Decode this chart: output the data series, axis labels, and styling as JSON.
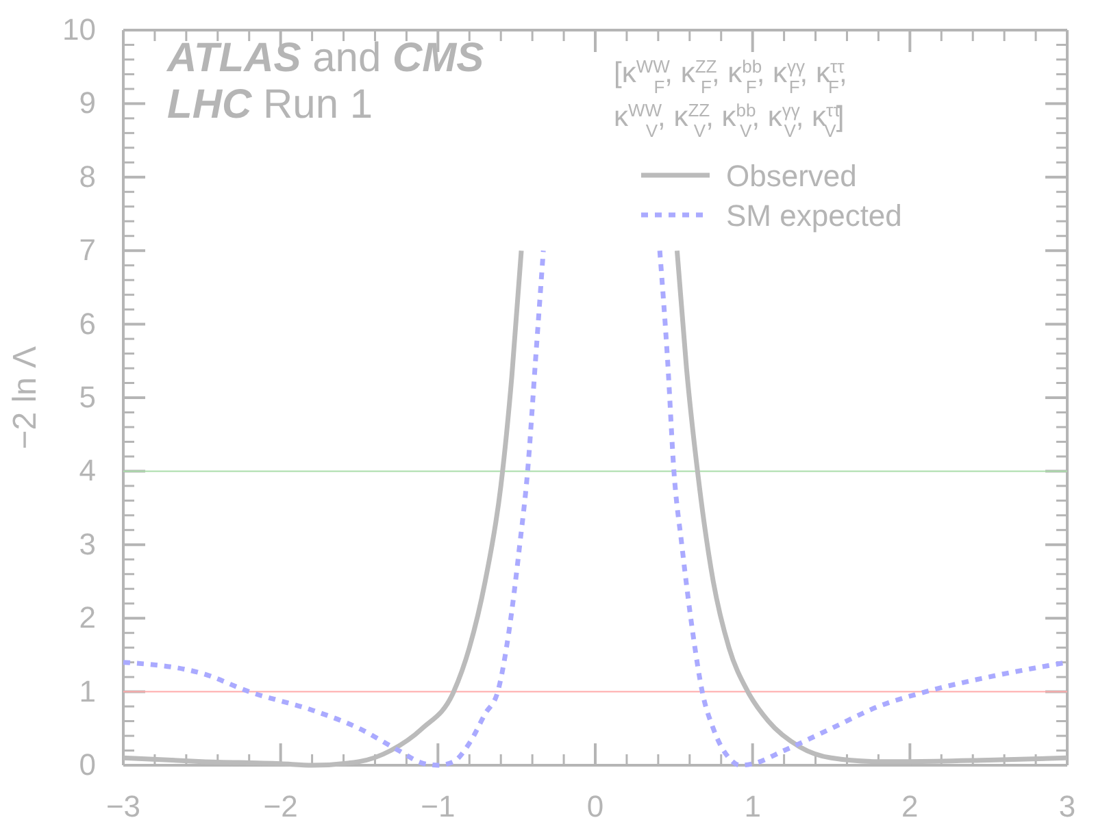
{
  "chart_data": {
    "type": "line",
    "ylabel": "−2 ln Λ",
    "xlim": [
      -3,
      3
    ],
    "ylim": [
      0,
      10
    ],
    "xticks": [
      -3,
      -2,
      -1,
      0,
      1,
      2,
      3
    ],
    "yticks": [
      0,
      1,
      2,
      3,
      4,
      5,
      6,
      7,
      8,
      9,
      10
    ],
    "grid": false,
    "legend": "top right",
    "marker": "none",
    "annotations": [
      "ATLAS and CMS",
      "LHC Run 1",
      "[κ$^{WW}$$_{F}$, κ$^{ZZ}$$_{F}$, κ$^{bb}$$_{F}$, κ$^{γγ}$$_{F}$, κ$^{ττ}$$_{F}$,",
      "κ$^{WW}$$_{V}$, κ$^{ZZ}$$_{V}$, κ$^{bb}$$_{V}$, κ$^{γγ}$$_{V}$, κ$^{ττ}$$_{V}$]"
    ],
    "ref_lines": [
      {
        "axis": "y",
        "value": 1,
        "color": "#ffaaaa"
      },
      {
        "axis": "y",
        "value": 4,
        "color": "#aaddaa"
      }
    ],
    "series": [
      {
        "name": "Observed",
        "color": "#bbbbbb",
        "line_style": "solid",
        "x": [
          -3,
          -2.5,
          -2,
          -1.8,
          -1.5,
          -1.3,
          -1.1,
          -0.9,
          -0.8,
          -0.7,
          -0.6,
          -0.53,
          -0.47,
          0,
          0.52,
          0.58,
          0.65,
          0.75,
          0.85,
          0.97,
          1.1,
          1.3,
          1.5,
          1.8,
          2,
          2.5,
          3
        ],
        "values": [
          0.1,
          0.05,
          0.02,
          0,
          0.05,
          0.2,
          0.5,
          1,
          1.6,
          2.5,
          3.8,
          5.3,
          7,
          null,
          7,
          5.4,
          4,
          2.5,
          1.6,
          1,
          0.6,
          0.25,
          0.1,
          0.05,
          0.05,
          0.07,
          0.1
        ]
      },
      {
        "name": "SM expected",
        "color": "#aaaaff",
        "line_style": "dotted",
        "x": [
          -3,
          -2.5,
          -2.2,
          -1.8,
          -1.5,
          -1.25,
          -1.1,
          -1,
          -0.9,
          -0.8,
          -0.7,
          -0.62,
          -0.55,
          -0.48,
          -0.43,
          -0.38,
          -0.33,
          0,
          0.41,
          0.46,
          0.5,
          0.55,
          0.62,
          0.68,
          0.75,
          0.85,
          0.92,
          1,
          1.2,
          1.5,
          1.8,
          2.1,
          2.5,
          3
        ],
        "values": [
          1.4,
          1.25,
          1,
          0.75,
          0.5,
          0.2,
          0.03,
          0,
          0.05,
          0.3,
          0.7,
          1,
          1.8,
          3,
          4,
          5.5,
          7,
          null,
          7,
          5.5,
          4,
          3,
          1.8,
          1,
          0.5,
          0.1,
          0,
          0.02,
          0.2,
          0.5,
          0.8,
          1,
          1.2,
          1.4
        ]
      }
    ]
  }
}
